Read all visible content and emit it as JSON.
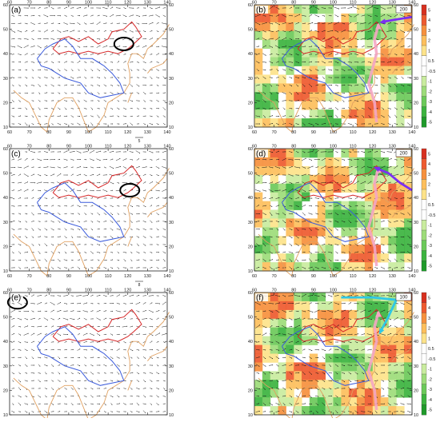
{
  "panels": [
    {
      "id": "a",
      "label": "(a)",
      "type": "wind",
      "ref_vector": "5",
      "ellipse": true
    },
    {
      "id": "b",
      "label": "(b)",
      "type": "shaded",
      "ref_box": "200",
      "arrow_color": "#7b2ff2",
      "pink": true
    },
    {
      "id": "c",
      "label": "(c)",
      "type": "wind",
      "ref_vector": "8",
      "ellipse": true
    },
    {
      "id": "d",
      "label": "(d)",
      "type": "shaded",
      "ref_box": "200",
      "arrow_color": "#7b2ff2",
      "pink": true
    },
    {
      "id": "e",
      "label": "(e)",
      "type": "wind",
      "ref_vector": "5",
      "ellipse": true
    },
    {
      "id": "f",
      "label": "(f)",
      "type": "shaded",
      "ref_box": "100",
      "arrow_color": "#2ec8e6",
      "pink": true
    }
  ],
  "x_ticks": [
    "60",
    "70",
    "80",
    "90",
    "100",
    "110",
    "120",
    "130",
    "140"
  ],
  "y_ticks": [
    "10",
    "20",
    "30",
    "40",
    "50",
    "60"
  ],
  "colorbar": {
    "labels": [
      "5",
      "4",
      "3",
      "2",
      "1",
      "0.5",
      "-0.5",
      "-1",
      "-2",
      "-3",
      "-4",
      "-5"
    ],
    "colors": [
      "#d7301f",
      "#ee5a2f",
      "#f6903d",
      "#fdbf5c",
      "#fde38a",
      "#ffffff",
      "#ffffff",
      "#c9ec9e",
      "#9ddc7a",
      "#6cc95a",
      "#3cb33f",
      "#1f9a2a"
    ]
  },
  "colors": {
    "boundary_red": "#d62728",
    "boundary_blue": "#3b5bdb",
    "coast": "#e0a060",
    "pink": "#f4a6c4"
  }
}
